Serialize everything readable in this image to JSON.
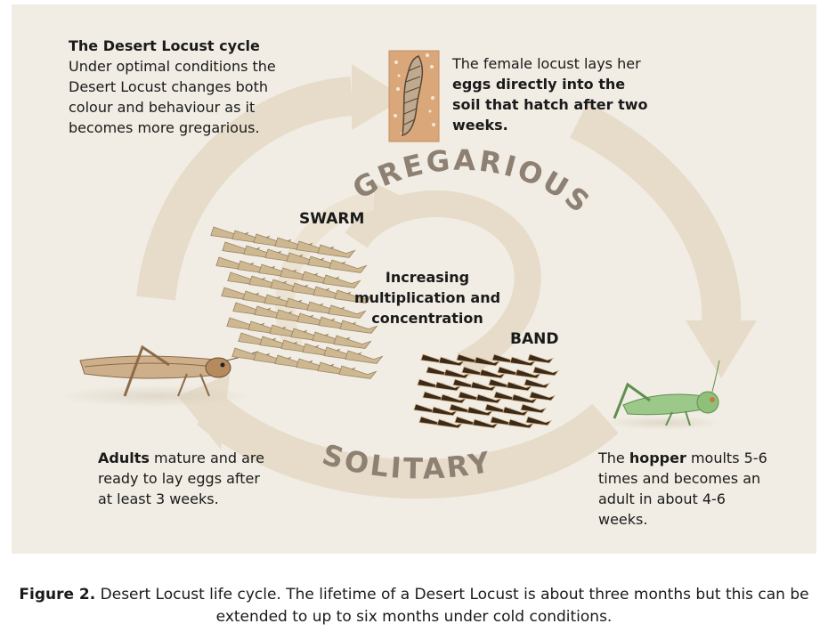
{
  "intro": {
    "title": "The Desert Locust cycle",
    "body": "Under optimal conditions the Desert Locust changes both colour and behaviour as it becomes more gregarious."
  },
  "egg_text": {
    "part1": "The female locust lays her ",
    "bold": "eggs directly into the soil that hatch after two weeks."
  },
  "labels": {
    "gregarious": "GREGARIOUS",
    "solitary": "SOLITARY",
    "swarm": "SWARM",
    "band": "BAND",
    "center": "Increasing multiplication and concentration"
  },
  "adult_text": {
    "bold": "Adults",
    "rest": " mature and are ready to lay eggs after at least 3 weeks."
  },
  "hopper_text": {
    "part1": "The ",
    "bold": "hopper",
    "rest": " moults 5-6 times and becomes an adult in about 4-6 weeks."
  },
  "caption": {
    "bold": "Figure 2.",
    "rest": " Desert Locust life cycle. The lifetime of a Desert Locust is about three months but this can be extended to up to six months under cold conditions."
  },
  "colors": {
    "panel": "#f1ede4",
    "arrow": "#e6dcc9",
    "cycle_text": "#8e8073",
    "locust_brown": "#a87c54",
    "hopper_green": "#8fc07a",
    "band_dark": "#3a2a1c",
    "swarm_tan": "#cdb891"
  }
}
